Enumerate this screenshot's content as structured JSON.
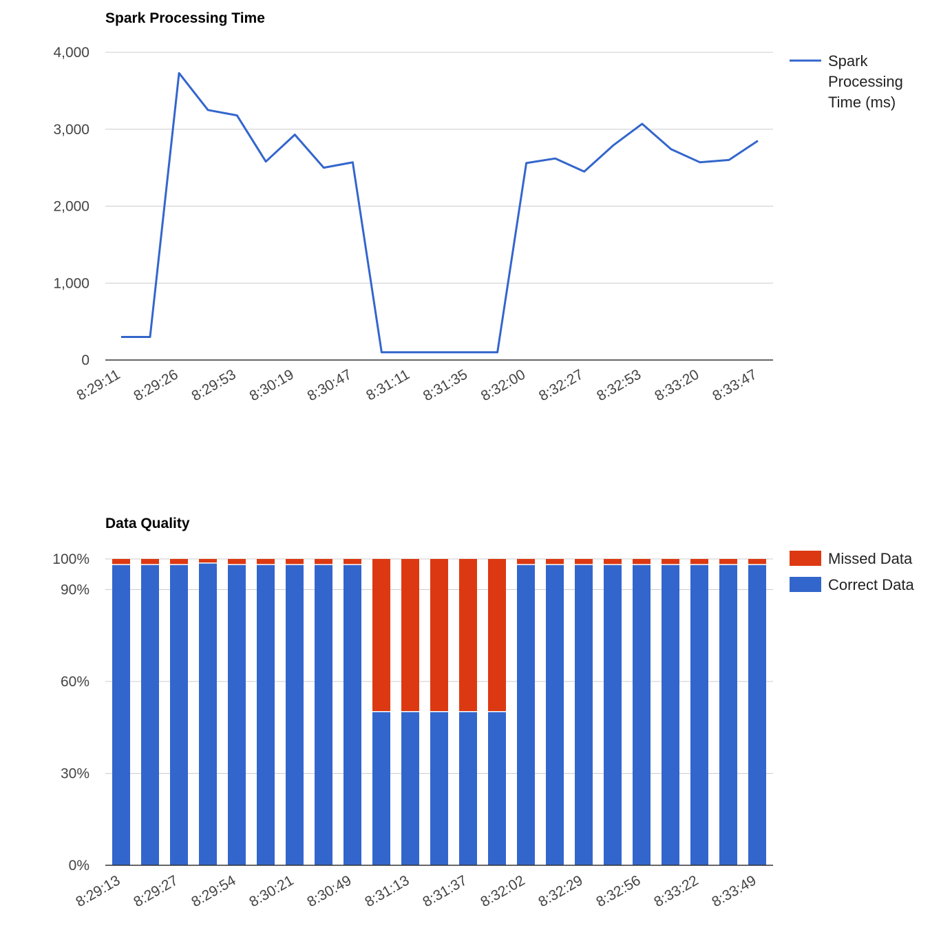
{
  "chart_data": [
    {
      "type": "line",
      "title": "Spark Processing Time",
      "xlabel": "",
      "ylabel": "",
      "ylim": [
        0,
        4000
      ],
      "yticks": [
        0,
        1000,
        2000,
        3000,
        4000
      ],
      "ytick_labels": [
        "0",
        "1,000",
        "2,000",
        "3,000",
        "4,000"
      ],
      "xtick_labels": [
        "8:29:11",
        "8:29:26",
        "8:29:53",
        "8:30:19",
        "8:30:47",
        "8:31:11",
        "8:31:35",
        "8:32:00",
        "8:32:27",
        "8:32:53",
        "8:33:20",
        "8:33:47"
      ],
      "grid": true,
      "legend_position": "right",
      "series": [
        {
          "name": "Spark Processing Time (ms)",
          "color": "#3366cc",
          "values": [
            300,
            300,
            3730,
            3250,
            3180,
            2580,
            2930,
            2500,
            2570,
            100,
            100,
            100,
            100,
            100,
            2560,
            2620,
            2450,
            2790,
            3070,
            2740,
            2570,
            2600,
            2850
          ]
        }
      ]
    },
    {
      "type": "bar",
      "stacked": true,
      "title": "Data Quality",
      "xlabel": "",
      "ylabel": "",
      "ylim": [
        0,
        100
      ],
      "yticks": [
        0,
        30,
        60,
        90,
        100
      ],
      "ytick_labels": [
        "0%",
        "30%",
        "60%",
        "90%",
        "100%"
      ],
      "xtick_labels": [
        "8:29:13",
        "8:29:27",
        "8:29:54",
        "8:30:21",
        "8:30:49",
        "8:31:13",
        "8:31:37",
        "8:32:02",
        "8:32:29",
        "8:32:56",
        "8:33:22",
        "8:33:49"
      ],
      "grid": true,
      "legend_position": "right",
      "series": [
        {
          "name": "Missed Data",
          "color": "#dc3912",
          "values": [
            2,
            2,
            2,
            1.5,
            2,
            2,
            2,
            2,
            2,
            50,
            50,
            50,
            50,
            50,
            2,
            2,
            2,
            2,
            2,
            2,
            2,
            2,
            2
          ]
        },
        {
          "name": "Correct Data",
          "color": "#3366cc",
          "values": [
            98,
            98,
            98,
            98.5,
            98,
            98,
            98,
            98,
            98,
            50,
            50,
            50,
            50,
            50,
            98,
            98,
            98,
            98,
            98,
            98,
            98,
            98,
            98
          ]
        }
      ]
    }
  ]
}
